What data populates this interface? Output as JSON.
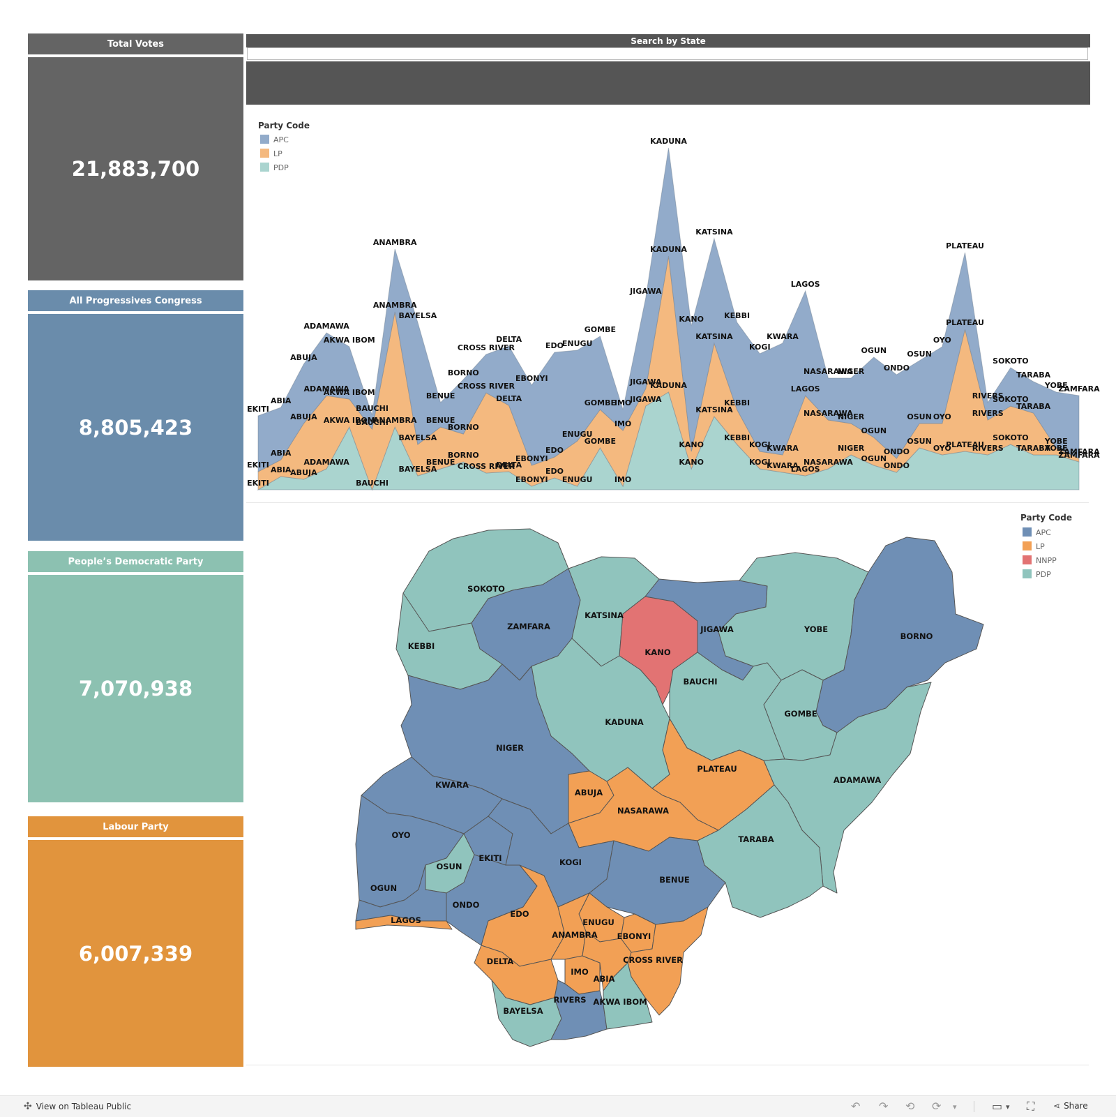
{
  "kpis": {
    "total": {
      "label": "Total Votes",
      "value": "21,883,700",
      "color": "#646464"
    },
    "apc": {
      "label": "All Progressives Congress",
      "value": "8,805,423",
      "color": "#6a8cab"
    },
    "pdp": {
      "label": "People’s Democratic Party",
      "value": "7,070,938",
      "color": "#8cc1b1"
    },
    "lp": {
      "label": "Labour Party",
      "value": "6,007,339",
      "color": "#e1943d"
    }
  },
  "search": {
    "title": "Search by State",
    "value": ""
  },
  "area_legend": {
    "title": "Party Code",
    "items": [
      {
        "label": "APC",
        "color": "#92abca"
      },
      {
        "label": "LP",
        "color": "#f4b97f"
      },
      {
        "label": "PDP",
        "color": "#aad4cf"
      }
    ]
  },
  "map_legend": {
    "title": "Party Code",
    "items": [
      {
        "label": "APC",
        "color": "#6f8fb5"
      },
      {
        "label": "LP",
        "color": "#f2a055"
      },
      {
        "label": "NNPP",
        "color": "#e27373"
      },
      {
        "label": "PDP",
        "color": "#90c4bd"
      }
    ]
  },
  "chart_data": {
    "type": "area",
    "stacked": true,
    "title": "",
    "xlabel": "",
    "ylabel": "",
    "grid": false,
    "legend_title": "Party Code",
    "legend_placement": "top-left",
    "note": "values are approximate relative vote heights estimated from the stacked area shape (no axis shown)",
    "categories": [
      "EKITI",
      "ABIA",
      "ABUJA",
      "ADAMAWA",
      "AKWA IBOM",
      "BAUCHI",
      "ANAMBRA",
      "BAYELSA",
      "BENUE",
      "BORNO",
      "CROSS RIVER",
      "DELTA",
      "EBONYI",
      "EDO",
      "ENUGU",
      "GOMBE",
      "IMO",
      "JIGAWA",
      "KADUNA",
      "KANO",
      "KATSINA",
      "KEBBI",
      "KOGI",
      "KWARA",
      "LAGOS",
      "NASARAWA",
      "NIGER",
      "OGUN",
      "ONDO",
      "OSUN",
      "OYO",
      "PLATEAU",
      "RIVERS",
      "SOKOTO",
      "TARABA",
      "YOBE",
      "ZAMFARA"
    ],
    "series": [
      {
        "name": "PDP",
        "values": [
          0,
          19,
          15,
          30,
          90,
          0,
          90,
          20,
          30,
          40,
          24,
          26,
          5,
          17,
          5,
          60,
          5,
          120,
          140,
          30,
          105,
          65,
          30,
          25,
          20,
          30,
          50,
          35,
          25,
          60,
          50,
          55,
          50,
          65,
          50,
          50,
          40
        ]
      },
      {
        "name": "LP",
        "values": [
          26,
          24,
          80,
          105,
          40,
          87,
          165,
          45,
          60,
          40,
          115,
          95,
          30,
          30,
          65,
          55,
          80,
          25,
          195,
          25,
          105,
          50,
          25,
          25,
          115,
          70,
          45,
          40,
          20,
          35,
          45,
          175,
          50,
          55,
          60,
          10,
          5
        ]
      },
      {
        "name": "APC",
        "values": [
          80,
          75,
          85,
          90,
          75,
          20,
          90,
          175,
          35,
          78,
          55,
          85,
          115,
          150,
          130,
          105,
          30,
          130,
          155,
          180,
          150,
          125,
          140,
          160,
          150,
          60,
          65,
          115,
          120,
          90,
          110,
          110,
          25,
          55,
          45,
          80,
          90
        ]
      }
    ],
    "labels": {
      "ekiti": "EKITI",
      "abia": "ABIA",
      "abuja": "ABUJA",
      "akwa_ibom": "AKWA IBOM",
      "anambra": "ANAMBRA",
      "bayelsa": "BAYELSA",
      "benue": "BENUE",
      "borno": "BORNO",
      "adamawa": "ADAMAWA",
      "bauchi": "BAUCHI",
      "cross_river": "CROSS RIVER",
      "delta": "DELTA",
      "ebonyi": "EBONYI",
      "edo": "EDO",
      "enugu": "ENUGU",
      "gombe": "GOMBE",
      "imo": "IMO",
      "jigawa": "JIGAWA",
      "kaduna": "KADUNA",
      "kano": "KANO",
      "katsina": "KATSINA",
      "kebbi": "KEBBI",
      "kogi": "KOGI",
      "kwara": "KWARA",
      "lagos": "LAGOS",
      "nasarawa": "NASARAWA",
      "niger": "NIGER",
      "ogun": "OGUN",
      "ondo": "ONDO",
      "osun": "OSUN",
      "oyo": "OYO",
      "plateau": "PLATEAU",
      "rivers": "RIVERS",
      "sokoto": "SOKOTO",
      "taraba": "TARABA",
      "yobe": "YOBE",
      "zamfara": "ZAMFARA"
    }
  },
  "map": {
    "states": [
      {
        "name": "SOKOTO",
        "party": "PDP"
      },
      {
        "name": "ZAMFARA",
        "party": "APC"
      },
      {
        "name": "KATSINA",
        "party": "PDP"
      },
      {
        "name": "KANO",
        "party": "NNPP"
      },
      {
        "name": "JIGAWA",
        "party": "APC"
      },
      {
        "name": "YOBE",
        "party": "PDP"
      },
      {
        "name": "BORNO",
        "party": "APC"
      },
      {
        "name": "KEBBI",
        "party": "PDP"
      },
      {
        "name": "BAUCHI",
        "party": "PDP"
      },
      {
        "name": "KADUNA",
        "party": "PDP"
      },
      {
        "name": "GOMBE",
        "party": "PDP"
      },
      {
        "name": "NIGER",
        "party": "APC"
      },
      {
        "name": "PLATEAU",
        "party": "LP"
      },
      {
        "name": "ADAMAWA",
        "party": "PDP"
      },
      {
        "name": "KWARA",
        "party": "APC"
      },
      {
        "name": "ABUJA",
        "party": "LP"
      },
      {
        "name": "NASARAWA",
        "party": "LP"
      },
      {
        "name": "OYO",
        "party": "APC"
      },
      {
        "name": "TARABA",
        "party": "PDP"
      },
      {
        "name": "OSUN",
        "party": "PDP"
      },
      {
        "name": "EKITI",
        "party": "APC"
      },
      {
        "name": "KOGI",
        "party": "APC"
      },
      {
        "name": "BENUE",
        "party": "APC"
      },
      {
        "name": "OGUN",
        "party": "APC"
      },
      {
        "name": "ONDO",
        "party": "APC"
      },
      {
        "name": "LAGOS",
        "party": "LP"
      },
      {
        "name": "EDO",
        "party": "LP"
      },
      {
        "name": "ENUGU",
        "party": "LP"
      },
      {
        "name": "ANAMBRA",
        "party": "LP"
      },
      {
        "name": "EBONYI",
        "party": "LP"
      },
      {
        "name": "CROSS RIVER",
        "party": "LP"
      },
      {
        "name": "DELTA",
        "party": "LP"
      },
      {
        "name": "IMO",
        "party": "LP"
      },
      {
        "name": "ABIA",
        "party": "LP"
      },
      {
        "name": "BAYELSA",
        "party": "PDP"
      },
      {
        "name": "RIVERS",
        "party": "APC"
      },
      {
        "name": "AKWA IBOM",
        "party": "PDP"
      }
    ]
  },
  "footer": {
    "link": "View on Tableau Public",
    "share": "Share"
  }
}
